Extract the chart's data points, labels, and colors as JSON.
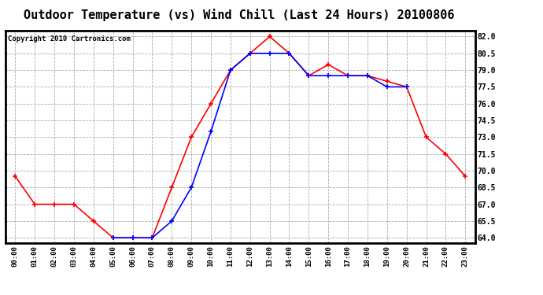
{
  "title": "Outdoor Temperature (vs) Wind Chill (Last 24 Hours) 20100806",
  "copyright": "Copyright 2010 Cartronics.com",
  "hours": [
    "00:00",
    "01:00",
    "02:00",
    "03:00",
    "04:00",
    "05:00",
    "06:00",
    "07:00",
    "08:00",
    "09:00",
    "10:00",
    "11:00",
    "12:00",
    "13:00",
    "14:00",
    "15:00",
    "16:00",
    "17:00",
    "18:00",
    "19:00",
    "20:00",
    "21:00",
    "22:00",
    "23:00"
  ],
  "temp": [
    69.5,
    67.0,
    67.0,
    67.0,
    65.5,
    64.0,
    64.0,
    64.0,
    68.5,
    73.0,
    76.0,
    79.0,
    80.5,
    82.0,
    80.5,
    78.5,
    79.5,
    78.5,
    78.5,
    78.0,
    77.5,
    73.0,
    71.5,
    69.5
  ],
  "windchill": [
    null,
    null,
    null,
    null,
    null,
    64.0,
    64.0,
    64.0,
    65.5,
    68.5,
    73.5,
    79.0,
    80.5,
    80.5,
    80.5,
    78.5,
    78.5,
    78.5,
    78.5,
    77.5,
    77.5,
    null,
    null,
    null
  ],
  "temp_color": "#ff0000",
  "windchill_color": "#0000ff",
  "ylim": [
    63.5,
    82.5
  ],
  "yticks": [
    64.0,
    65.5,
    67.0,
    68.5,
    70.0,
    71.5,
    73.0,
    74.5,
    76.0,
    77.5,
    79.0,
    80.5,
    82.0
  ],
  "background_color": "#ffffff",
  "plot_bg_color": "#ffffff",
  "grid_color": "#aaaaaa",
  "title_fontsize": 11,
  "copyright_fontsize": 6.5,
  "marker": "+",
  "marker_size": 4,
  "line_width": 1.2
}
